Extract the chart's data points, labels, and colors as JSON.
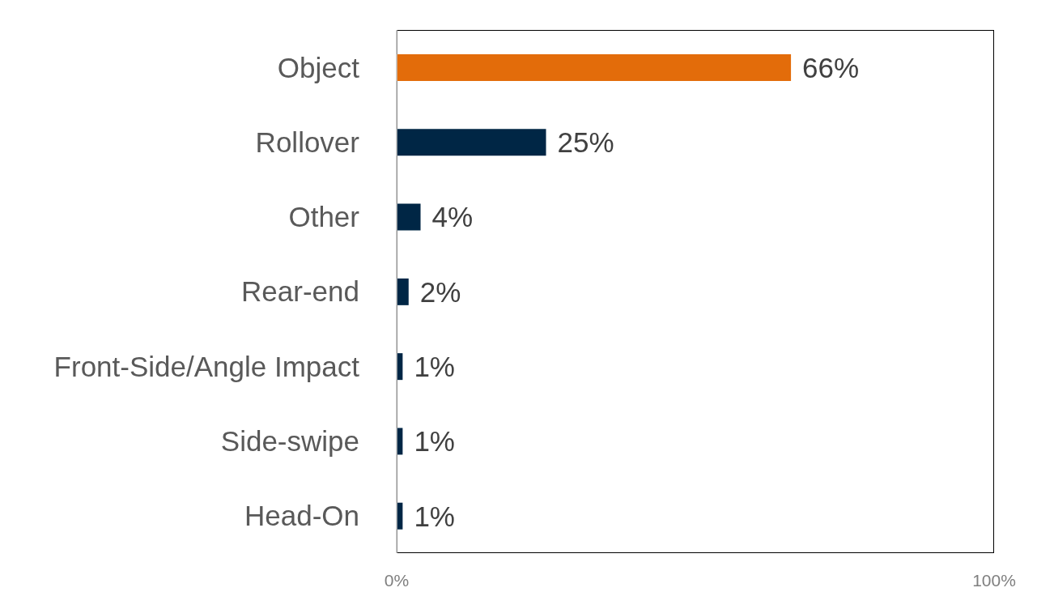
{
  "chart_data": {
    "type": "bar",
    "orientation": "horizontal",
    "categories": [
      "Object",
      "Rollover",
      "Other",
      "Rear-end",
      "Front-Side/Angle Impact",
      "Side-swipe",
      "Head-On"
    ],
    "values": [
      66,
      25,
      4,
      2,
      1,
      1,
      1
    ],
    "value_labels": [
      "66%",
      "25%",
      "4%",
      "2%",
      "1%",
      "1%",
      "1%"
    ],
    "colors": [
      "#e36c0a",
      "#002645",
      "#002645",
      "#002645",
      "#002645",
      "#002645",
      "#002645"
    ],
    "xlim": [
      0,
      100
    ],
    "xticks": [
      {
        "value": 0,
        "label": "0%"
      },
      {
        "value": 100,
        "label": "100%"
      }
    ],
    "grid": false,
    "legend": false
  }
}
